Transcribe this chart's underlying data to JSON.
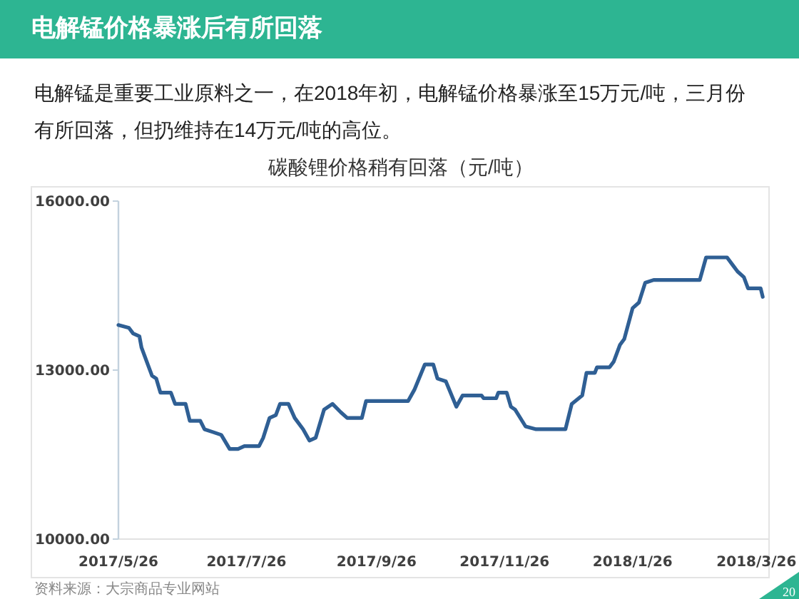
{
  "chart_data": {
    "type": "line",
    "title": "电解锰价格暴涨后有所回落",
    "subtitle": "电解锰是重要工业原料之一，在2018年初，电解锰价格暴涨至15万元/吨，三月份有所回落，但扔维持在14万元/吨的高位。",
    "annotations": [
      "碳酸锂价格稍有回落（元/吨）",
      "资料来源：大宗商品专业网站",
      "20"
    ],
    "x": [
      "2017-05-26",
      "2017-05-31",
      "2017-06-02",
      "2017-06-05",
      "2017-06-06",
      "2017-06-09",
      "2017-06-11",
      "2017-06-13",
      "2017-06-15",
      "2017-06-20",
      "2017-06-22",
      "2017-06-27",
      "2017-06-29",
      "2017-07-04",
      "2017-07-06",
      "2017-07-10",
      "2017-07-14",
      "2017-07-18",
      "2017-07-22",
      "2017-07-25",
      "2017-08-01",
      "2017-08-03",
      "2017-08-06",
      "2017-08-09",
      "2017-08-11",
      "2017-08-15",
      "2017-08-18",
      "2017-08-22",
      "2017-08-25",
      "2017-08-28",
      "2017-09-01",
      "2017-09-05",
      "2017-09-09",
      "2017-09-12",
      "2017-09-19",
      "2017-09-21",
      "2017-10-11",
      "2017-10-14",
      "2017-10-19",
      "2017-10-23",
      "2017-10-25",
      "2017-10-29",
      "2017-11-03",
      "2017-11-06",
      "2017-11-15",
      "2017-11-16",
      "2017-11-22",
      "2017-11-23",
      "2017-11-27",
      "2017-11-29",
      "2017-12-01",
      "2017-12-06",
      "2017-12-11",
      "2017-12-25",
      "2017-12-28",
      "2018-01-02",
      "2018-01-04",
      "2018-01-08",
      "2018-01-09",
      "2018-01-15",
      "2018-01-17",
      "2018-01-20",
      "2018-01-22",
      "2018-01-26",
      "2018-01-29",
      "2018-02-01",
      "2018-02-05",
      "2018-02-27",
      "2018-03-02",
      "2018-03-12",
      "2018-03-15",
      "2018-03-17",
      "2018-03-20",
      "2018-03-22",
      "2018-03-28",
      "2018-03-29"
    ],
    "values": [
      13800,
      13750,
      13650,
      13600,
      13400,
      13100,
      12900,
      12850,
      12600,
      12600,
      12400,
      12400,
      12100,
      12100,
      11950,
      11900,
      11850,
      11600,
      11600,
      11650,
      11650,
      11800,
      12150,
      12200,
      12400,
      12400,
      12150,
      11950,
      11750,
      11800,
      12300,
      12400,
      12250,
      12150,
      12150,
      12450,
      12450,
      12650,
      13100,
      13100,
      12850,
      12800,
      12350,
      12550,
      12550,
      12500,
      12500,
      12600,
      12600,
      12350,
      12300,
      12000,
      11950,
      11950,
      12400,
      12550,
      12950,
      12950,
      13050,
      13050,
      13150,
      13450,
      13550,
      14100,
      14200,
      14550,
      14600,
      14600,
      15000,
      15000,
      14850,
      14750,
      14650,
      14450,
      14450,
      14300
    ],
    "color": "#2f5f94",
    "line_style": "solid",
    "xlim": [
      "2017-05-26",
      "2018-04-01"
    ],
    "xticks": [
      {
        "value": "2017-05-26",
        "label": "2017/5/26"
      },
      {
        "value": "2017-07-26",
        "label": "2017/7/26"
      },
      {
        "value": "2017-09-26",
        "label": "2017/9/26"
      },
      {
        "value": "2017-11-26",
        "label": "2017/11/26"
      },
      {
        "value": "2018-01-26",
        "label": "2018/1/26"
      },
      {
        "value": "2018-03-26",
        "label": "2018/3/26"
      }
    ],
    "ylim": [
      10000,
      16000
    ],
    "yticks": [
      {
        "value": 10000,
        "label": "10000.00"
      },
      {
        "value": 13000,
        "label": "13000.00"
      },
      {
        "value": 16000,
        "label": "16000.00"
      }
    ]
  }
}
